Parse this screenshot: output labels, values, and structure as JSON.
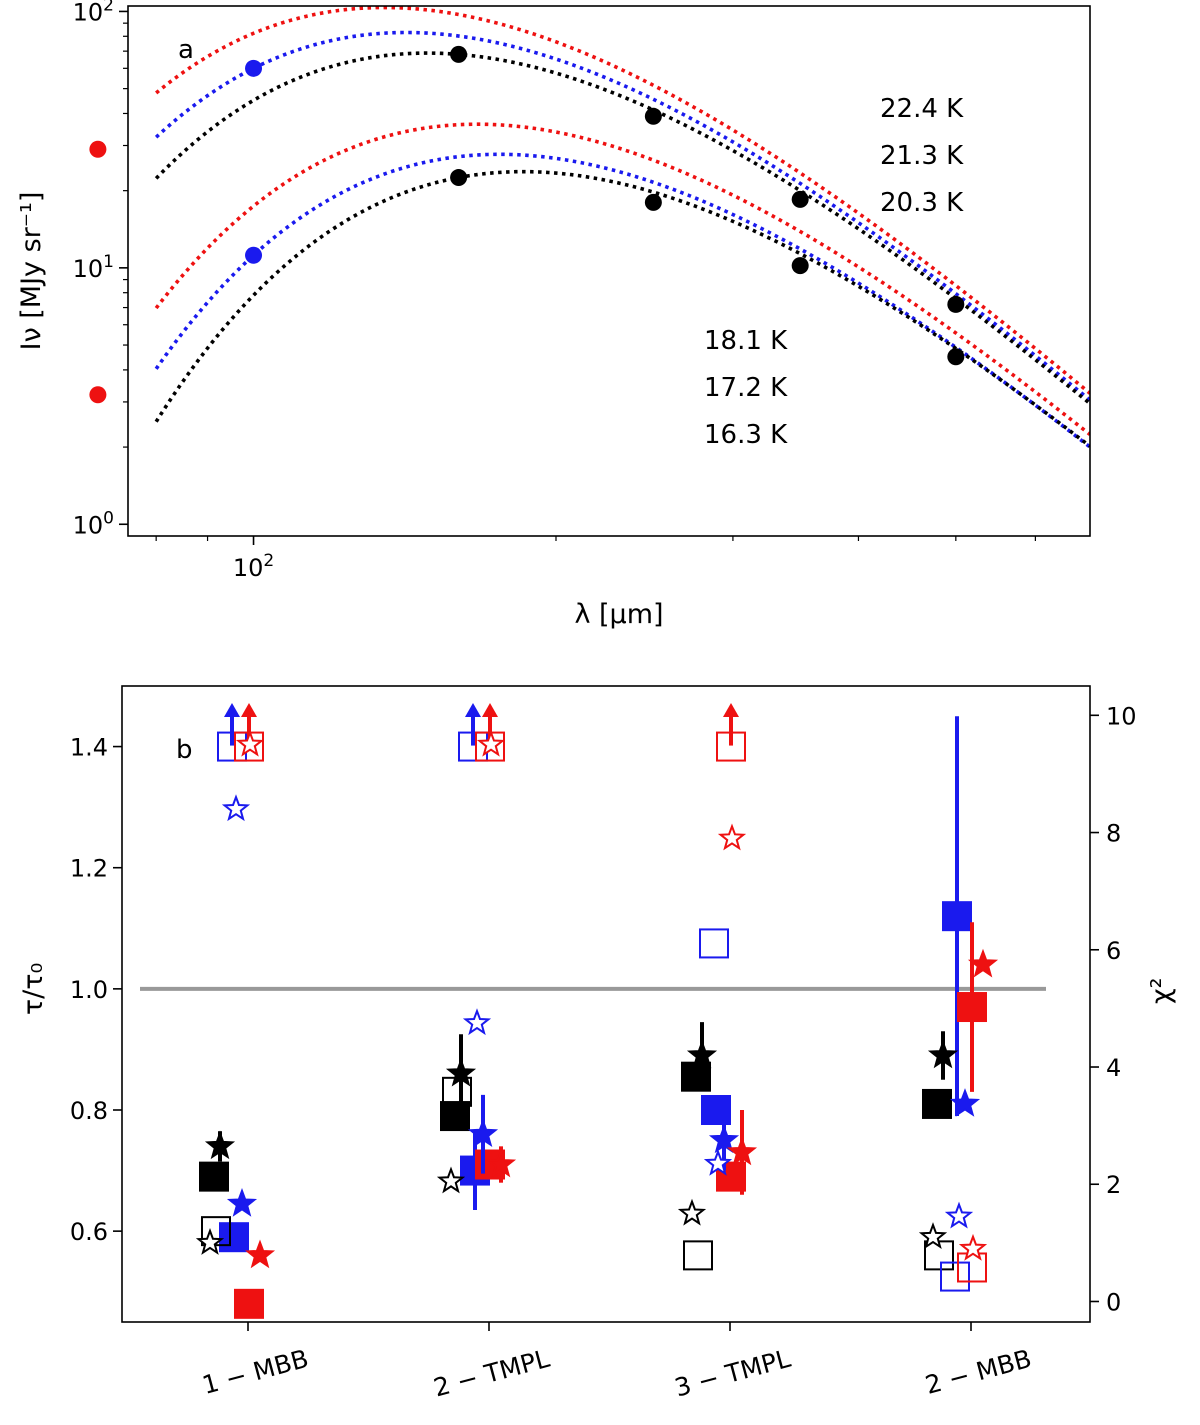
{
  "chart_data": [
    {
      "panel": "a",
      "type": "line",
      "xscale": "log",
      "yscale": "log",
      "xlabel": "λ [µm]",
      "ylabel": "Iν [MJy sr⁻¹]",
      "xlim": [
        75,
        680
      ],
      "ylim": [
        0.9,
        105
      ],
      "xticks": [
        {
          "value": 100,
          "label": "10^2"
        }
      ],
      "yticks": [
        {
          "value": 1,
          "label": "10^0"
        },
        {
          "value": 10,
          "label": "10^1"
        },
        {
          "value": 100,
          "label": "10^2"
        }
      ],
      "line_style": "dotted",
      "colors": {
        "red": "#ee1111",
        "blue": "#1a1aee",
        "black": "#000000"
      },
      "groups": [
        {
          "temperature_labels": [
            "22.4 K",
            "21.3 K",
            "20.3 K"
          ],
          "series": [
            {
              "color": "red",
              "T": 22.4,
              "points": [
                {
                  "x": 70,
                  "y": 29
                }
              ]
            },
            {
              "color": "blue",
              "T": 21.3,
              "points": [
                {
                  "x": 100,
                  "y": 60
                }
              ]
            },
            {
              "color": "black",
              "T": 20.3,
              "points": [
                {
                  "x": 160,
                  "y": 68
                },
                {
                  "x": 250,
                  "y": 39
                },
                {
                  "x": 350,
                  "y": 18.5
                },
                {
                  "x": 500,
                  "y": 7.2
                }
              ]
            }
          ]
        },
        {
          "temperature_labels": [
            "18.1 K",
            "17.2 K",
            "16.3 K"
          ],
          "series": [
            {
              "color": "red",
              "T": 18.1,
              "points": [
                {
                  "x": 70,
                  "y": 3.2
                }
              ]
            },
            {
              "color": "blue",
              "T": 17.2,
              "points": [
                {
                  "x": 100,
                  "y": 11.2
                }
              ]
            },
            {
              "color": "black",
              "T": 16.3,
              "points": [
                {
                  "x": 160,
                  "y": 22.5
                },
                {
                  "x": 250,
                  "y": 18
                },
                {
                  "x": 350,
                  "y": 10.2
                },
                {
                  "x": 500,
                  "y": 4.5
                }
              ]
            }
          ]
        }
      ]
    },
    {
      "panel": "b",
      "type": "scatter",
      "categories": [
        "1 − MBB",
        "2 − TMPL",
        "3 − TMPL",
        "2 − MBB"
      ],
      "ylabel": "τ/τ₀",
      "y2label": "χ²",
      "ylim": [
        0.45,
        1.5
      ],
      "y2lim": [
        -0.35,
        10.5
      ],
      "yticks": [
        0.6,
        0.8,
        1.0,
        1.2,
        1.4
      ],
      "y2ticks": [
        0,
        2,
        4,
        6,
        8,
        10
      ],
      "reference_line": 1.0,
      "tau_series": [
        {
          "color": "black",
          "values": [
            0.69,
            0.79,
            0.855,
            0.81
          ]
        },
        {
          "color": "blue",
          "values": [
            0.59,
            0.7,
            0.8,
            1.12
          ],
          "errors": [
            null,
            0.065,
            null,
            0.33
          ]
        },
        {
          "color": "red",
          "values": [
            0.48,
            0.71,
            0.69,
            0.97
          ],
          "errors": [
            null,
            null,
            null,
            0.14
          ]
        }
      ],
      "tau_open_series": [
        {
          "color": "black",
          "values": [
            0.6,
            0.83,
            0.56,
            0.56
          ]
        },
        {
          "color": "blue",
          "values": [
            1.4,
            1.4,
            1.075,
            0.525
          ],
          "lower_limit": [
            true,
            true,
            false,
            false
          ]
        },
        {
          "color": "red",
          "values": [
            1.4,
            1.4,
            1.4,
            0.54
          ],
          "lower_limit": [
            true,
            true,
            true,
            false
          ]
        }
      ],
      "star_series": [
        {
          "color": "black",
          "values": [
            0.74,
            0.86,
            0.89,
            0.89
          ],
          "errors": [
            0.025,
            0.065,
            0.055,
            0.04
          ]
        },
        {
          "color": "blue",
          "values": [
            0.645,
            0.76,
            0.75,
            0.81
          ],
          "errors": [
            null,
            0.065,
            0.05,
            null
          ]
        },
        {
          "color": "red",
          "values": [
            0.56,
            0.71,
            0.73,
            1.04
          ],
          "errors": [
            null,
            0.03,
            0.07,
            null
          ]
        }
      ],
      "chi2_star_series": [
        {
          "color": "black",
          "values": [
            1.0,
            2.05,
            1.5,
            1.1
          ]
        },
        {
          "color": "blue",
          "values": [
            8.4,
            4.75,
            2.35,
            1.45
          ]
        },
        {
          "color": "red",
          "values": [
            9.5,
            9.5,
            7.9,
            0.9
          ]
        }
      ]
    }
  ]
}
